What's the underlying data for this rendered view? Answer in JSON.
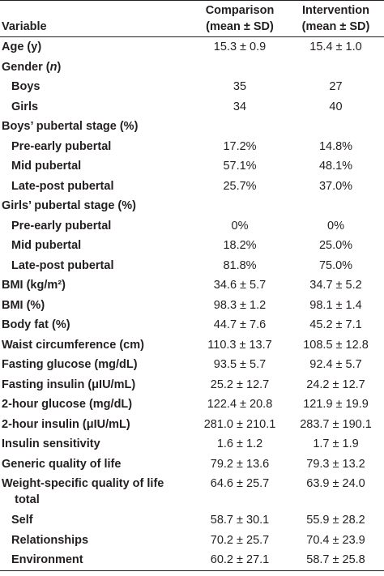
{
  "header": {
    "variable": "Variable",
    "comparison": "Comparison\n(mean ± SD)",
    "intervention": "Intervention\n(mean ± SD)"
  },
  "rows": [
    {
      "label": "Age (y)",
      "type": "bold",
      "comparison": "15.3 ± 0.9",
      "intervention": "15.4 ± 1.0"
    },
    {
      "label": "Gender (n)",
      "type": "bold",
      "comparison": "",
      "intervention": ""
    },
    {
      "label": "Boys",
      "type": "indent",
      "comparison": "35",
      "intervention": "27"
    },
    {
      "label": "Girls",
      "type": "indent",
      "comparison": "34",
      "intervention": "40"
    },
    {
      "label": "Boys’ pubertal stage (%)",
      "type": "bold",
      "comparison": "",
      "intervention": ""
    },
    {
      "label": "Pre-early pubertal",
      "type": "indent",
      "comparison": "17.2%",
      "intervention": "14.8%"
    },
    {
      "label": "Mid pubertal",
      "type": "indent",
      "comparison": "57.1%",
      "intervention": "48.1%"
    },
    {
      "label": "Late-post pubertal",
      "type": "indent",
      "comparison": "25.7%",
      "intervention": "37.0%"
    },
    {
      "label": "Girls’ pubertal stage (%)",
      "type": "bold",
      "comparison": "",
      "intervention": ""
    },
    {
      "label": "Pre-early pubertal",
      "type": "indent",
      "comparison": "0%",
      "intervention": "0%"
    },
    {
      "label": "Mid pubertal",
      "type": "indent",
      "comparison": "18.2%",
      "intervention": "25.0%"
    },
    {
      "label": "Late-post pubertal",
      "type": "indent",
      "comparison": "81.8%",
      "intervention": "75.0%"
    },
    {
      "label": "BMI (kg/m²)",
      "type": "bold",
      "comparison": "34.6 ± 5.7",
      "intervention": "34.7 ± 5.2"
    },
    {
      "label": "BMI (%)",
      "type": "bold",
      "comparison": "98.3 ± 1.2",
      "intervention": "98.1 ± 1.4"
    },
    {
      "label": "Body fat (%)",
      "type": "bold",
      "comparison": "44.7 ± 7.6",
      "intervention": "45.2 ± 7.1"
    },
    {
      "label": "Waist circumference (cm)",
      "type": "bold",
      "comparison": "110.3 ± 13.7",
      "intervention": "108.5 ± 12.8"
    },
    {
      "label": "Fasting glucose (mg/dL)",
      "type": "bold",
      "comparison": "93.5 ± 5.7",
      "intervention": "92.4 ± 5.7"
    },
    {
      "label": "Fasting insulin (μIU/mL)",
      "type": "bold",
      "comparison": "25.2 ± 12.7",
      "intervention": "24.2 ± 12.7"
    },
    {
      "label": "2-hour glucose (mg/dL)",
      "type": "bold",
      "comparison": "122.4 ± 20.8",
      "intervention": "121.9 ± 19.9"
    },
    {
      "label": "2-hour insulin (μIU/mL)",
      "type": "bold",
      "comparison": "281.0 ± 210.1",
      "intervention": "283.7 ± 190.1"
    },
    {
      "label": "Insulin sensitivity",
      "type": "bold",
      "comparison": "1.6 ± 1.2",
      "intervention": "1.7 ± 1.9"
    },
    {
      "label": "Generic quality of life",
      "type": "bold",
      "comparison": "79.2 ± 13.6",
      "intervention": "79.3 ± 13.2"
    },
    {
      "label": "Weight-specific quality of life\n    total",
      "type": "bold",
      "tall": true,
      "comparison": "64.6 ± 25.7",
      "intervention": "63.9 ± 24.0"
    },
    {
      "label": "Self",
      "type": "indent",
      "comparison": "58.7 ± 30.1",
      "intervention": "55.9 ± 28.2"
    },
    {
      "label": "Relationships",
      "type": "indent",
      "comparison": "70.2 ± 25.7",
      "intervention": "70.4 ± 23.9"
    },
    {
      "label": "Environment",
      "type": "indent",
      "comparison": "60.2 ± 27.1",
      "intervention": "58.7 ± 25.8"
    }
  ]
}
